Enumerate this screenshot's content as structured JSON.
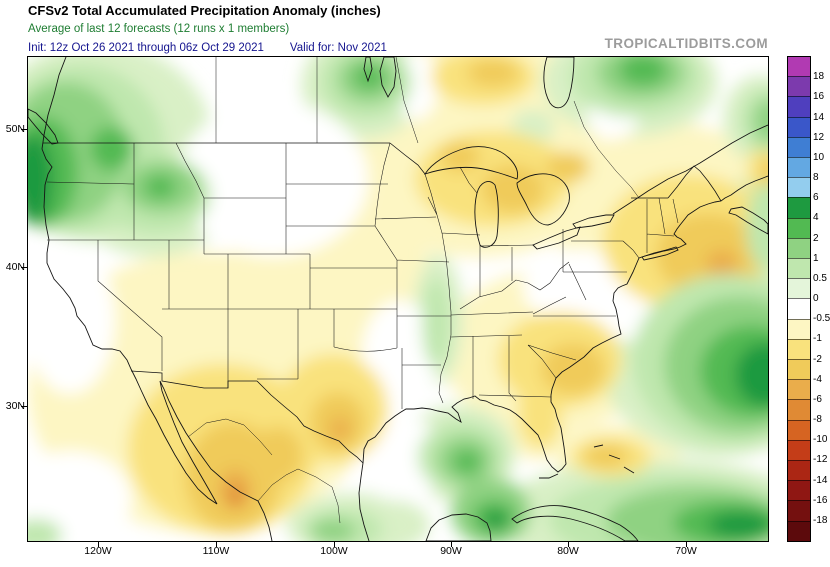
{
  "header": {
    "title": "CFSv2 Total Accumulated Precipitation Anomaly (inches)",
    "subtitle": "Average of last 12 forecasts (12 runs x 1 members)",
    "init_label": "Init: 12z Oct 26 2021 through 06z Oct 29 2021",
    "valid_label": "Valid for: Nov 2021",
    "watermark": "TROPICALTIDBITS.COM"
  },
  "colors": {
    "title": "#000000",
    "subtitle": "#1e7d32",
    "init": "#15158f",
    "watermark": "#9c9c9c",
    "map_outline": "#151515"
  },
  "axes": {
    "lat_labels": [
      "50N",
      "40N",
      "30N"
    ],
    "lon_labels": [
      "120W",
      "110W",
      "100W",
      "90W",
      "80W",
      "70W"
    ]
  },
  "colorbar": {
    "ticks": [
      "18",
      "16",
      "14",
      "12",
      "10",
      "8",
      "6",
      "4",
      "2",
      "1",
      "0.5",
      "0",
      "-0.5",
      "-1",
      "-2",
      "-4",
      "-6",
      "-8",
      "-10",
      "-12",
      "-14",
      "-16",
      "-18"
    ],
    "colors": [
      "#b13ab2",
      "#7c3aad",
      "#4f3fbe",
      "#3a57c9",
      "#3f7ed3",
      "#63a8e2",
      "#93cdee",
      "#1e9a40",
      "#52ba52",
      "#8fd282",
      "#bfe7ae",
      "#e4f5da",
      "#ffffff",
      "#fdf6c3",
      "#f9e27d",
      "#f0cb5a",
      "#eaad4b",
      "#e08a34",
      "#d66422",
      "#c43d18",
      "#ab2614",
      "#8f1713",
      "#74100f",
      "#5c0a0c"
    ]
  },
  "chart_data": {
    "type": "heatmap",
    "title": "CFSv2 Total Accumulated Precipitation Anomaly (inches)",
    "subtitle": "Average of last 12 forecasts (12 runs x 1 members)",
    "init": "12z Oct 26 2021 through 06z Oct 29 2021",
    "valid": "Nov 2021",
    "units": "inches",
    "source": "TROPICALTIDBITS.COM",
    "extent": {
      "lon_deg_west": [
        126,
        63
      ],
      "lat_deg_north": [
        20,
        55
      ]
    },
    "scale_ticks": [
      18,
      16,
      14,
      12,
      10,
      8,
      6,
      4,
      2,
      1,
      0.5,
      0,
      -0.5,
      -1,
      -2,
      -4,
      -6,
      -8,
      -10,
      -12,
      -14,
      -16,
      -18
    ],
    "regions": [
      {
        "area": "Pacific Northwest and British Columbia coast",
        "anomaly_in": "+1 to +4"
      },
      {
        "area": "Northern Rockies / Idaho",
        "anomaly_in": "+0.5 to +2"
      },
      {
        "area": "Saskatchewan-Manitoba border area",
        "anomaly_in": "+1 to +2"
      },
      {
        "area": "Quebec / eastern Canada",
        "anomaly_in": "+1 to +2"
      },
      {
        "area": "Northern Plains (Montana, Wyoming, Dakotas)",
        "anomaly_in": "near 0"
      },
      {
        "area": "Southwest US (S. California, Arizona, New Mexico)",
        "anomaly_in": "-0.5 to -1"
      },
      {
        "area": "Mexico interior",
        "anomaly_in": "-2 to -6"
      },
      {
        "area": "Texas",
        "anomaly_in": "-1 to -4"
      },
      {
        "area": "Central Plains (Kansas, Oklahoma, Missouri)",
        "anomaly_in": "-0.5 to -1"
      },
      {
        "area": "Upper Midwest and Great Lakes",
        "anomaly_in": "-1 to -2"
      },
      {
        "area": "Northeast US and Canadian Maritimes",
        "anomaly_in": "-1 to -4"
      },
      {
        "area": "Southeast US (Georgia, Carolinas, Florida)",
        "anomaly_in": "-1 to -2"
      },
      {
        "area": "Lower Mississippi Valley",
        "anomaly_in": "+0.5 to +1"
      },
      {
        "area": "Gulf of Mexico south of Louisiana",
        "anomaly_in": "+1 to +2"
      },
      {
        "area": "Western Atlantic",
        "anomaly_in": "+2 to +6"
      },
      {
        "area": "Cuba / Bahamas",
        "anomaly_in": "-1 to -2"
      },
      {
        "area": "NW Caribbean and Yucatan",
        "anomaly_in": "+1 to +4"
      }
    ]
  }
}
